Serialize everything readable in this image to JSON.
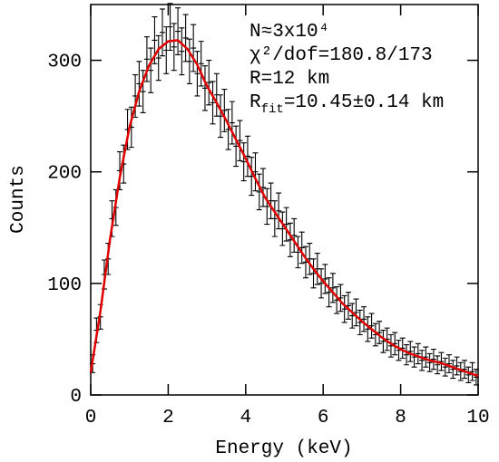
{
  "chart_data": {
    "type": "errorbar",
    "xlabel": "Energy (keV)",
    "ylabel": "Counts",
    "annotations": [
      "N≈3x10⁴",
      "χ²/dof=180.8/173",
      "R=12 km",
      {
        "base": "R",
        "sub": "fit",
        "text": "=10.45±0.14 km"
      }
    ],
    "xlim": [
      0,
      10
    ],
    "xticks": [
      0,
      2,
      4,
      6,
      8,
      10
    ],
    "ylim": [
      0,
      350
    ],
    "yticks": [
      0,
      100,
      200,
      300
    ],
    "series": [
      {
        "color": "#000000",
        "x": [
          0.05,
          0.15,
          0.25,
          0.35,
          0.45,
          0.55,
          0.65,
          0.75,
          0.85,
          0.95,
          1.05,
          1.15,
          1.25,
          1.35,
          1.45,
          1.55,
          1.65,
          1.75,
          1.85,
          1.95,
          2.05,
          2.15,
          2.25,
          2.35,
          2.45,
          2.55,
          2.65,
          2.75,
          2.85,
          2.95,
          3.05,
          3.15,
          3.25,
          3.35,
          3.45,
          3.55,
          3.65,
          3.75,
          3.85,
          3.95,
          4.05,
          4.15,
          4.25,
          4.35,
          4.45,
          4.55,
          4.65,
          4.75,
          4.85,
          4.95,
          5.05,
          5.15,
          5.25,
          5.35,
          5.45,
          5.55,
          5.65,
          5.75,
          5.85,
          5.95,
          6.05,
          6.15,
          6.25,
          6.35,
          6.45,
          6.55,
          6.65,
          6.75,
          6.85,
          6.95,
          7.05,
          7.15,
          7.25,
          7.35,
          7.45,
          7.55,
          7.65,
          7.75,
          7.85,
          7.95,
          8.05,
          8.15,
          8.25,
          8.35,
          8.45,
          8.55,
          8.65,
          8.75,
          8.85,
          8.95,
          9.05,
          9.15,
          9.25,
          9.35,
          9.45,
          9.55,
          9.65,
          9.75,
          9.85,
          9.95
        ],
        "values": [
          28,
          58,
          70,
          108,
          122,
          158,
          168,
          201,
          207,
          238,
          240,
          268,
          279,
          272,
          301,
          291,
          318,
          302,
          325,
          309,
          330,
          312,
          326,
          308,
          320,
          299,
          311,
          288,
          297,
          275,
          280,
          262,
          269,
          250,
          255,
          238,
          244,
          223,
          228,
          209,
          214,
          196,
          200,
          182,
          186,
          169,
          174,
          158,
          165,
          149,
          153,
          139,
          143,
          128,
          132,
          119,
          122,
          109,
          113,
          100,
          104,
          92,
          96,
          85,
          87,
          77,
          80,
          71,
          74,
          65,
          68,
          59,
          62,
          54,
          56,
          48,
          50,
          44,
          46,
          40,
          42,
          36,
          39,
          34,
          37,
          31,
          34,
          29,
          32,
          27,
          30,
          25,
          28,
          23,
          26,
          21,
          23,
          18,
          21,
          16
        ],
        "errors": [
          8,
          11,
          11,
          13,
          14,
          16,
          16,
          17,
          17,
          18,
          18,
          19,
          20,
          19,
          20,
          20,
          21,
          20,
          21,
          21,
          21,
          21,
          21,
          21,
          21,
          20,
          21,
          20,
          20,
          20,
          20,
          19,
          19,
          19,
          19,
          18,
          19,
          18,
          18,
          17,
          18,
          17,
          17,
          16,
          17,
          16,
          16,
          16,
          16,
          15,
          15,
          15,
          15,
          14,
          14,
          14,
          14,
          13,
          14,
          13,
          13,
          13,
          13,
          12,
          12,
          12,
          12,
          11,
          12,
          11,
          11,
          11,
          11,
          10,
          10,
          10,
          10,
          10,
          10,
          9,
          9,
          9,
          9,
          9,
          9,
          9,
          9,
          8,
          9,
          8,
          8,
          8,
          8,
          8,
          8,
          8,
          8,
          7,
          8,
          7
        ]
      },
      {
        "color": "#e00000",
        "x": [
          0,
          0.25,
          0.5,
          0.75,
          1,
          1.25,
          1.5,
          1.75,
          2,
          2.25,
          2.5,
          2.75,
          3,
          3.25,
          3.5,
          3.75,
          4,
          4.25,
          4.5,
          4.75,
          5,
          5.25,
          5.5,
          5.75,
          6,
          6.25,
          6.5,
          6.75,
          7,
          7.25,
          7.5,
          7.75,
          8,
          8.25,
          8.5,
          8.75,
          9,
          9.25,
          9.5,
          9.75,
          10
        ],
        "values": [
          20,
          75,
          140,
          195,
          240,
          272,
          295,
          310,
          317,
          318,
          310,
          296,
          277,
          262,
          246,
          229,
          212,
          194,
          177,
          164,
          151,
          138,
          125,
          113,
          102,
          92,
          82,
          74,
          66,
          59,
          52,
          46,
          41,
          37,
          34,
          31,
          29,
          26,
          23,
          20,
          17
        ]
      }
    ]
  }
}
